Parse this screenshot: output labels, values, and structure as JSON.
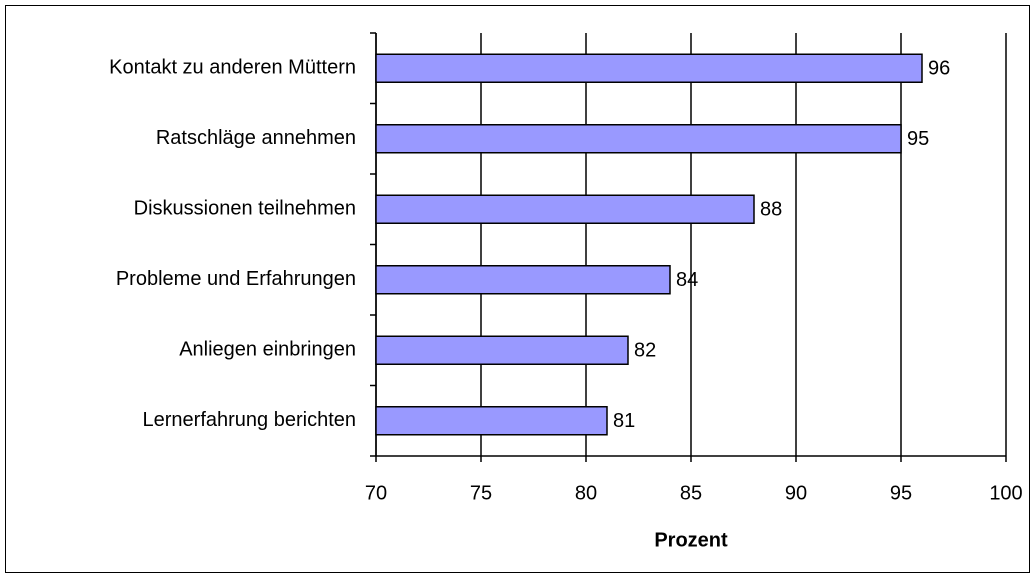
{
  "chart_data": {
    "type": "bar",
    "orientation": "horizontal",
    "categories": [
      "Kontakt zu anderen Müttern",
      "Ratschläge annehmen",
      "Diskussionen teilnehmen",
      "Probleme und Erfahrungen",
      "Anliegen einbringen",
      "Lernerfahrung berichten"
    ],
    "values": [
      96,
      95,
      88,
      84,
      82,
      81
    ],
    "color": "#9999ff",
    "xlabel": "Prozent",
    "xlim": [
      70,
      100
    ],
    "xticks": [
      70,
      75,
      80,
      85,
      90,
      95,
      100
    ],
    "grid": true
  }
}
